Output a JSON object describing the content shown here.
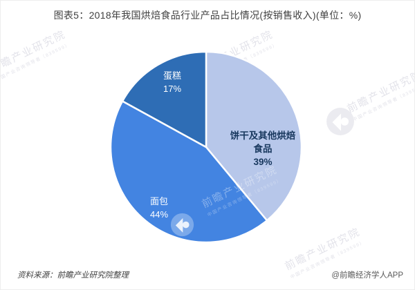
{
  "title": "图表5：2018年我国烘焙食品行业产品占比情况(按销售收入)(单位：%)",
  "chart_data": {
    "type": "pie",
    "title": "2018年我国烘焙食品行业产品占比情况(按销售收入)",
    "unit": "%",
    "start_angle": "top",
    "direction": "clockwise",
    "legend_position": "none",
    "categories": [
      "饼干及其他烘焙食品",
      "面包",
      "蛋糕"
    ],
    "values": [
      39,
      44,
      17
    ],
    "series": [
      {
        "name": "饼干及其他烘焙食品",
        "value": 39,
        "pct_label": "39%",
        "color": "#b7c7ea",
        "label_lines": [
          "饼干及其他烘焙",
          "食品"
        ]
      },
      {
        "name": "面包",
        "value": 44,
        "pct_label": "44%",
        "color": "#4384e1"
      },
      {
        "name": "蛋糕",
        "value": 17,
        "pct_label": "17%",
        "color": "#2e6db5"
      }
    ]
  },
  "footer": {
    "source": "资料来源：前瞻产业研究院整理",
    "credit": "@前瞻经济学人APP"
  },
  "watermark": {
    "text": "前瞻产业研究院",
    "subtext": "中国产业咨询领导者（839599）"
  }
}
